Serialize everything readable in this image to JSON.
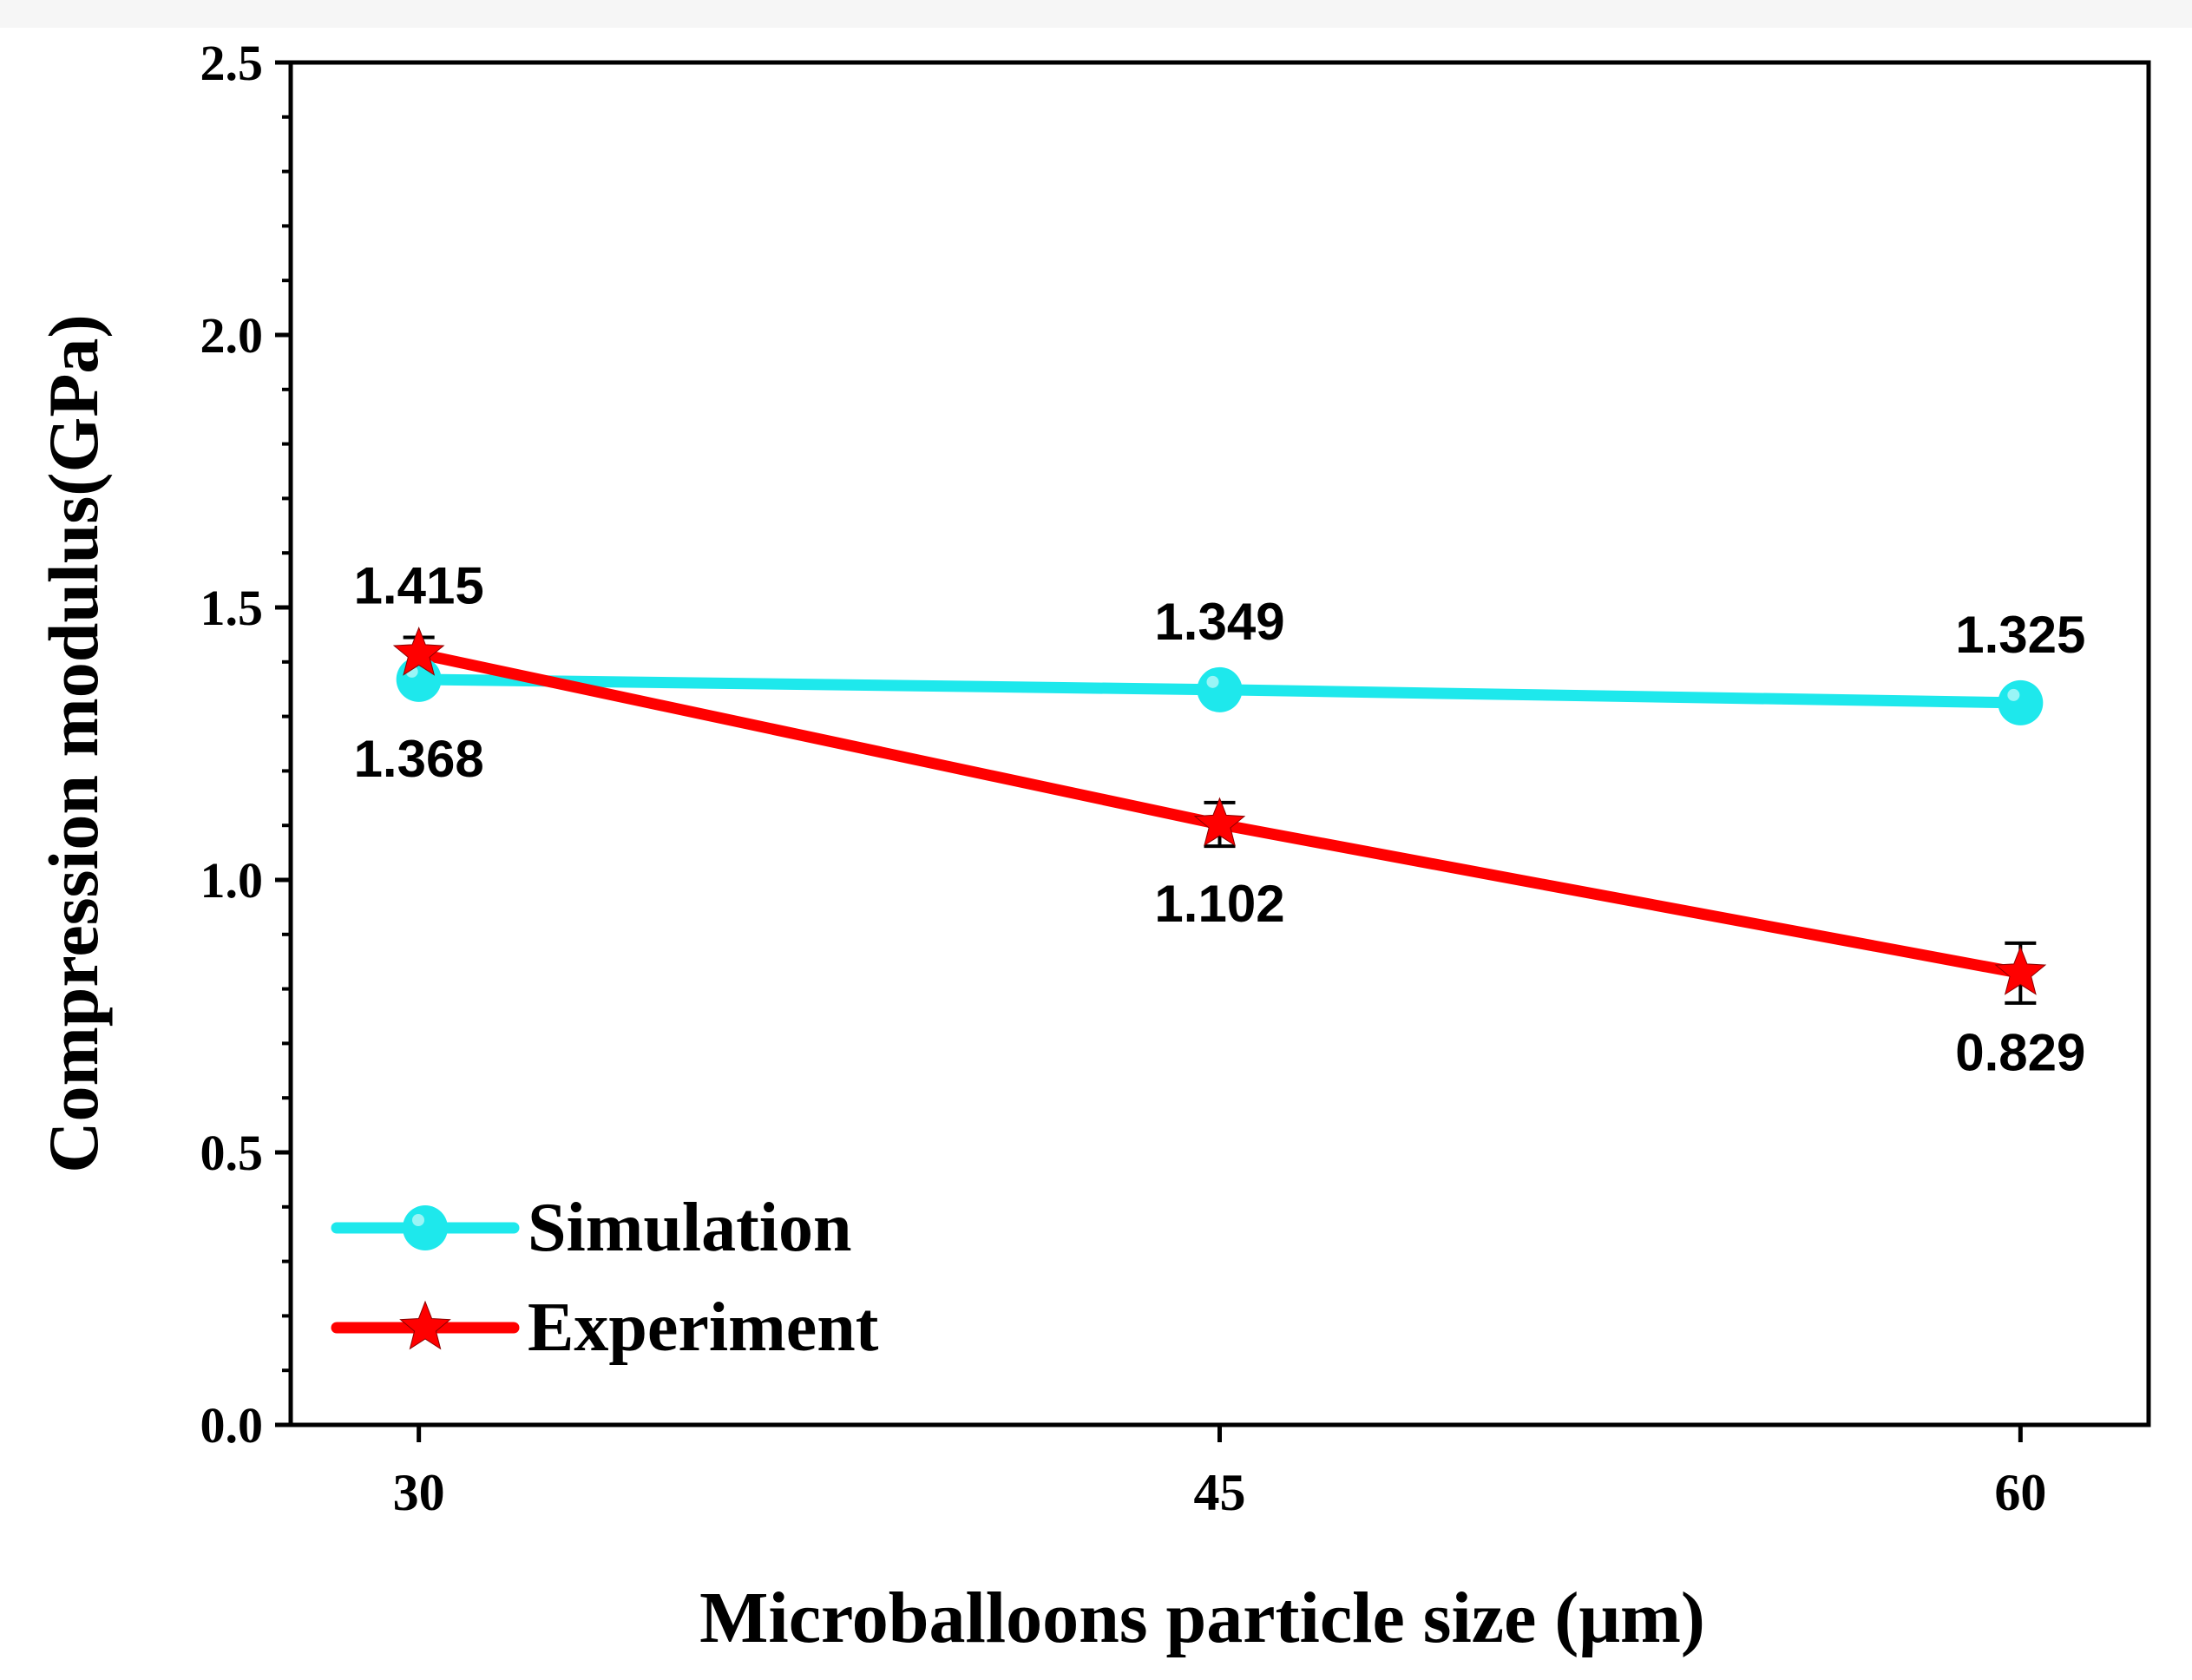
{
  "chart_data": {
    "type": "line",
    "title": "",
    "xlabel": "Microballoons particle size (μm)",
    "ylabel": "Compression modulus(GPa)",
    "x": [
      30,
      45,
      60
    ],
    "xlim": [
      27.6,
      62.4
    ],
    "ylim": [
      0,
      2.5
    ],
    "yticks": [
      0.0,
      0.5,
      1.0,
      1.5,
      2.0,
      2.5
    ],
    "ytick_labels": [
      "0.0",
      "0.5",
      "1.0",
      "1.5",
      "2.0",
      "2.5"
    ],
    "xtick_labels": [
      "30",
      "45",
      "60"
    ],
    "grid": false,
    "legend_position": "bottom-left",
    "series": [
      {
        "name": "Simulation",
        "values": [
          1.368,
          1.349,
          1.325
        ],
        "labels": [
          "1.368",
          "1.349",
          "1.325"
        ],
        "label_positions": [
          "below",
          "above",
          "above"
        ],
        "marker": "circle",
        "color": "#1ee8ec"
      },
      {
        "name": "Experiment",
        "values": [
          1.415,
          1.102,
          0.829
        ],
        "errors": [
          0.03,
          0.04,
          0.055
        ],
        "labels": [
          "1.415",
          "1.102",
          "0.829"
        ],
        "label_positions": [
          "above",
          "below",
          "below"
        ],
        "marker": "star",
        "color": "#ff0000"
      }
    ]
  }
}
